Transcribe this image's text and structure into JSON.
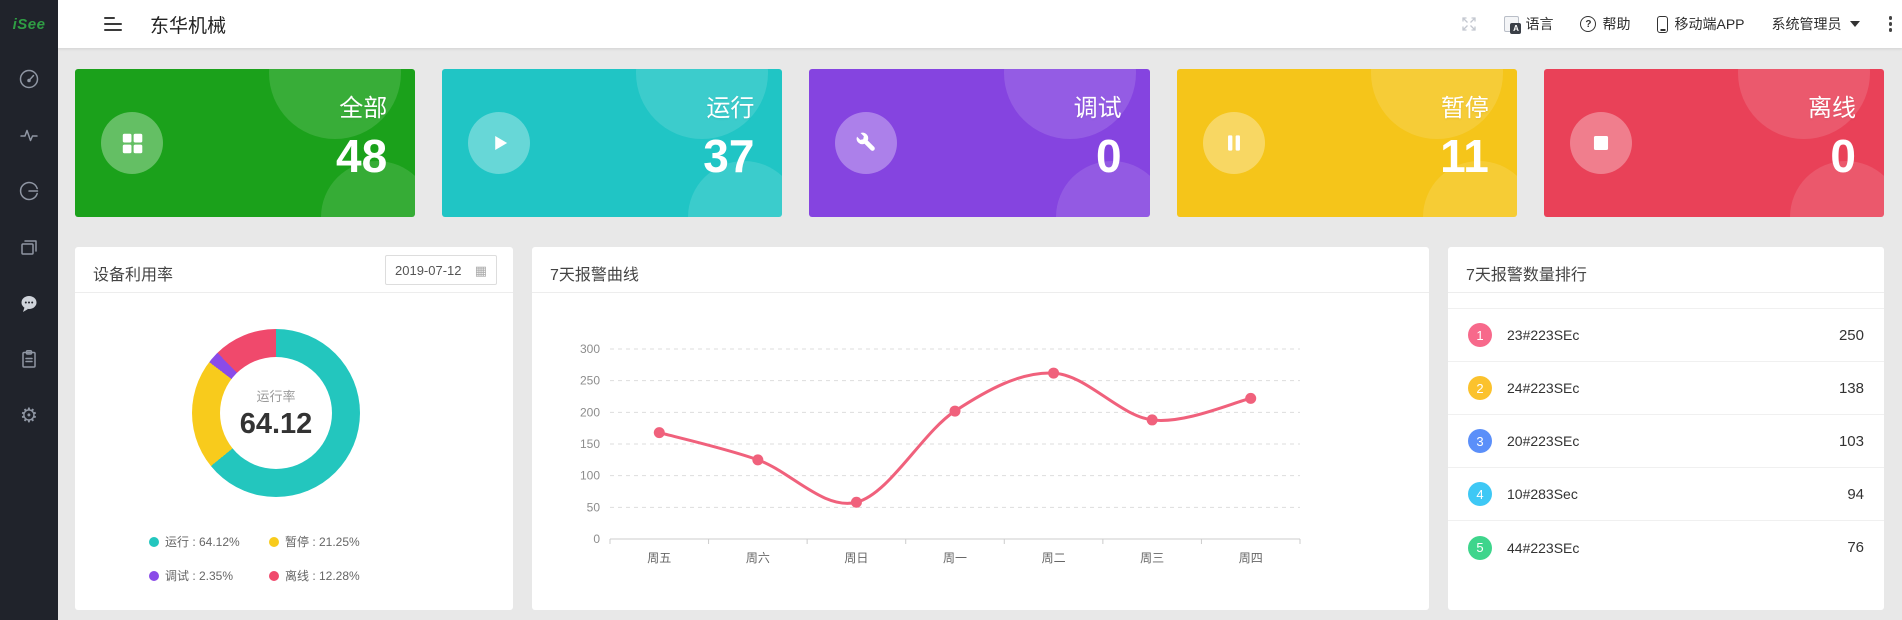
{
  "app": {
    "logo_text": "iSee",
    "title": "东华机械"
  },
  "topbar": {
    "language_label": "语言",
    "help_label": "帮助",
    "mobile_app_label": "移动端APP",
    "admin_label": "系统管理员"
  },
  "sidebar": {
    "icons": [
      "dashboard-gauge",
      "activity-pulse",
      "efficiency-gauge",
      "device-stack",
      "message-chat",
      "report-clipboard",
      "settings-gear"
    ]
  },
  "cards": [
    {
      "label": "全部",
      "value": "48",
      "color": "#1ba11b",
      "icon": "grid-icon"
    },
    {
      "label": "运行",
      "value": "37",
      "color": "#20c5c5",
      "icon": "play-icon"
    },
    {
      "label": "调试",
      "value": "0",
      "color": "#8544e0",
      "icon": "wrench-icon"
    },
    {
      "label": "暂停",
      "value": "11",
      "color": "#f5c51a",
      "icon": "pause-icon"
    },
    {
      "label": "离线",
      "value": "0",
      "color": "#e94158",
      "icon": "stop-icon"
    }
  ],
  "utilization": {
    "title": "设备利用率",
    "date": "2019-07-12",
    "center_label": "运行率",
    "center_value": "64.12",
    "legend": [
      "运行 : 64.12%",
      "暂停 : 21.25%",
      "调试 : 2.35%",
      "离线 : 12.28%"
    ]
  },
  "alarm_curve": {
    "title": "7天报警曲线"
  },
  "ranking": {
    "title": "7天报警数量排行",
    "items": [
      {
        "rank": "1",
        "name": "23#223SEc",
        "value": "250",
        "color": "#f7698b"
      },
      {
        "rank": "2",
        "name": "24#223SEc",
        "value": "138",
        "color": "#fbc22d"
      },
      {
        "rank": "3",
        "name": "20#223SEc",
        "value": "103",
        "color": "#5b8ff9"
      },
      {
        "rank": "4",
        "name": "10#283Sec",
        "value": "94",
        "color": "#3ec8f5"
      },
      {
        "rank": "5",
        "name": "44#223SEc",
        "value": "76",
        "color": "#3ed58c"
      }
    ]
  },
  "chart_data": [
    {
      "type": "pie",
      "title": "设备利用率",
      "labels": [
        "运行",
        "暂停",
        "调试",
        "离线"
      ],
      "values": [
        64.12,
        21.25,
        2.35,
        12.28
      ],
      "colors": [
        "#23c6be",
        "#f8cb1c",
        "#8a4be8",
        "#f0496c"
      ],
      "center_label": "运行率",
      "center_value": "64.12",
      "donut": true,
      "legend_position": "bottom"
    },
    {
      "type": "line",
      "title": "7天报警曲线",
      "categories": [
        "周五",
        "周六",
        "周日",
        "周一",
        "周二",
        "周三",
        "周四"
      ],
      "values": [
        168,
        125,
        58,
        202,
        262,
        188,
        222
      ],
      "ylim": [
        0,
        300
      ],
      "ytick_step": 50,
      "line_color": "#f0617c",
      "smooth": true,
      "grid": "dashed-horizontal"
    }
  ]
}
